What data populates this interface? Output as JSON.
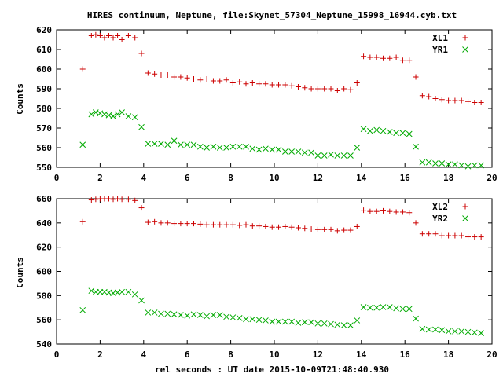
{
  "chart_data": [
    {
      "type": "scatter",
      "title": "HIRES continuum, Neptune, file:Skynet_57304_Neptune_15998_16944.cyb.txt",
      "xlabel": "",
      "ylabel": "Counts",
      "xlim": [
        0,
        20
      ],
      "ylim": [
        550,
        620
      ],
      "xticks": [
        "0",
        "2",
        "4",
        "6",
        "8",
        "10",
        "12",
        "14",
        "16",
        "18",
        "20"
      ],
      "yticks": [
        "550",
        "560",
        "570",
        "580",
        "590",
        "600",
        "610",
        "620"
      ],
      "legend_position": "top-right",
      "series": [
        {
          "name": "XL1",
          "marker": "plus",
          "color": "#cc0000",
          "points": [
            [
              1.2,
              600
            ],
            [
              1.6,
              617
            ],
            [
              1.8,
              617.5
            ],
            [
              2.0,
              617
            ],
            [
              2.2,
              616
            ],
            [
              2.4,
              617
            ],
            [
              2.6,
              616
            ],
            [
              2.8,
              617
            ],
            [
              3.0,
              615
            ],
            [
              3.3,
              617
            ],
            [
              3.6,
              616
            ],
            [
              3.9,
              608
            ],
            [
              4.2,
              598
            ],
            [
              4.5,
              597.5
            ],
            [
              4.8,
              597
            ],
            [
              5.1,
              597
            ],
            [
              5.4,
              596
            ],
            [
              5.7,
              596
            ],
            [
              6.0,
              595.5
            ],
            [
              6.3,
              595
            ],
            [
              6.6,
              594.5
            ],
            [
              6.9,
              595
            ],
            [
              7.2,
              594
            ],
            [
              7.5,
              594
            ],
            [
              7.8,
              594.5
            ],
            [
              8.1,
              593
            ],
            [
              8.4,
              593.5
            ],
            [
              8.7,
              592.5
            ],
            [
              9.0,
              593
            ],
            [
              9.3,
              592.5
            ],
            [
              9.6,
              592.5
            ],
            [
              9.9,
              592
            ],
            [
              10.2,
              592
            ],
            [
              10.5,
              592
            ],
            [
              10.8,
              591.5
            ],
            [
              11.1,
              591
            ],
            [
              11.4,
              590.5
            ],
            [
              11.7,
              590
            ],
            [
              12.0,
              590
            ],
            [
              12.3,
              590
            ],
            [
              12.6,
              590
            ],
            [
              12.9,
              589
            ],
            [
              13.2,
              590
            ],
            [
              13.5,
              589.5
            ],
            [
              13.8,
              593
            ],
            [
              14.1,
              606.5
            ],
            [
              14.4,
              606
            ],
            [
              14.7,
              606
            ],
            [
              15.0,
              605.5
            ],
            [
              15.3,
              605.5
            ],
            [
              15.6,
              606
            ],
            [
              15.9,
              604.5
            ],
            [
              16.2,
              604.5
            ],
            [
              16.5,
              596
            ],
            [
              16.8,
              586.5
            ],
            [
              17.1,
              586
            ],
            [
              17.4,
              585
            ],
            [
              17.7,
              584.5
            ],
            [
              18.0,
              584
            ],
            [
              18.3,
              584
            ],
            [
              18.6,
              584
            ],
            [
              18.9,
              583.5
            ],
            [
              19.2,
              583
            ],
            [
              19.5,
              583
            ]
          ]
        },
        {
          "name": "YR1",
          "marker": "cross",
          "color": "#00aa00",
          "points": [
            [
              1.2,
              561.5
            ],
            [
              1.6,
              577
            ],
            [
              1.8,
              578
            ],
            [
              2.0,
              577.5
            ],
            [
              2.2,
              577
            ],
            [
              2.4,
              576.5
            ],
            [
              2.6,
              576
            ],
            [
              2.8,
              577
            ],
            [
              3.0,
              578
            ],
            [
              3.3,
              576
            ],
            [
              3.6,
              575.5
            ],
            [
              3.9,
              570.5
            ],
            [
              4.2,
              562
            ],
            [
              4.5,
              562
            ],
            [
              4.8,
              562
            ],
            [
              5.1,
              561.5
            ],
            [
              5.4,
              563.5
            ],
            [
              5.7,
              561.5
            ],
            [
              6.0,
              561.5
            ],
            [
              6.3,
              561.5
            ],
            [
              6.6,
              560.5
            ],
            [
              6.9,
              560
            ],
            [
              7.2,
              560.5
            ],
            [
              7.5,
              560
            ],
            [
              7.8,
              560
            ],
            [
              8.1,
              560.5
            ],
            [
              8.4,
              560.5
            ],
            [
              8.7,
              560.5
            ],
            [
              9.0,
              559.5
            ],
            [
              9.3,
              559
            ],
            [
              9.6,
              559.5
            ],
            [
              9.9,
              559
            ],
            [
              10.2,
              559
            ],
            [
              10.5,
              558
            ],
            [
              10.8,
              558
            ],
            [
              11.1,
              558
            ],
            [
              11.4,
              557.5
            ],
            [
              11.7,
              557.5
            ],
            [
              12.0,
              556
            ],
            [
              12.3,
              556
            ],
            [
              12.6,
              556.5
            ],
            [
              12.9,
              556
            ],
            [
              13.2,
              556
            ],
            [
              13.5,
              556
            ],
            [
              13.8,
              560
            ],
            [
              14.1,
              569.5
            ],
            [
              14.4,
              568.5
            ],
            [
              14.7,
              569
            ],
            [
              15.0,
              568.5
            ],
            [
              15.3,
              568
            ],
            [
              15.6,
              567.5
            ],
            [
              15.9,
              567.5
            ],
            [
              16.2,
              567
            ],
            [
              16.5,
              560.5
            ],
            [
              16.8,
              552.5
            ],
            [
              17.1,
              552.5
            ],
            [
              17.4,
              552
            ],
            [
              17.7,
              552
            ],
            [
              18.0,
              551.5
            ],
            [
              18.3,
              551.5
            ],
            [
              18.6,
              551
            ],
            [
              18.9,
              550.5
            ],
            [
              19.2,
              551
            ],
            [
              19.5,
              551
            ]
          ]
        }
      ]
    },
    {
      "type": "scatter",
      "title": "",
      "xlabel": "rel seconds : UT date 2015-10-09T21:48:40.930",
      "ylabel": "Counts",
      "xlim": [
        0,
        20
      ],
      "ylim": [
        540,
        660
      ],
      "xticks": [
        "0",
        "2",
        "4",
        "6",
        "8",
        "10",
        "12",
        "14",
        "16",
        "18",
        "20"
      ],
      "yticks": [
        "540",
        "560",
        "580",
        "600",
        "620",
        "640",
        "660"
      ],
      "legend_position": "top-right",
      "series": [
        {
          "name": "XL2",
          "marker": "plus",
          "color": "#cc0000",
          "points": [
            [
              1.2,
              641
            ],
            [
              1.6,
              659
            ],
            [
              1.8,
              659.5
            ],
            [
              2.0,
              660
            ],
            [
              2.2,
              660
            ],
            [
              2.4,
              660
            ],
            [
              2.6,
              659.5
            ],
            [
              2.8,
              660
            ],
            [
              3.0,
              659.5
            ],
            [
              3.3,
              659.5
            ],
            [
              3.6,
              658.5
            ],
            [
              3.9,
              652.5
            ],
            [
              4.2,
              640.5
            ],
            [
              4.5,
              641
            ],
            [
              4.8,
              640
            ],
            [
              5.1,
              640
            ],
            [
              5.4,
              639.5
            ],
            [
              5.7,
              639.5
            ],
            [
              6.0,
              639.5
            ],
            [
              6.3,
              639.5
            ],
            [
              6.6,
              639
            ],
            [
              6.9,
              638.5
            ],
            [
              7.2,
              638.5
            ],
            [
              7.5,
              638.5
            ],
            [
              7.8,
              638.5
            ],
            [
              8.1,
              638.5
            ],
            [
              8.4,
              638
            ],
            [
              8.7,
              638.5
            ],
            [
              9.0,
              637.5
            ],
            [
              9.3,
              637.5
            ],
            [
              9.6,
              637
            ],
            [
              9.9,
              636.5
            ],
            [
              10.2,
              636.5
            ],
            [
              10.5,
              637
            ],
            [
              10.8,
              636.5
            ],
            [
              11.1,
              636
            ],
            [
              11.4,
              635.5
            ],
            [
              11.7,
              635
            ],
            [
              12.0,
              634.5
            ],
            [
              12.3,
              634.5
            ],
            [
              12.6,
              634.5
            ],
            [
              12.9,
              633.5
            ],
            [
              13.2,
              634
            ],
            [
              13.5,
              634
            ],
            [
              13.8,
              637
            ],
            [
              14.1,
              650.5
            ],
            [
              14.4,
              649.5
            ],
            [
              14.7,
              649.5
            ],
            [
              15.0,
              650
            ],
            [
              15.3,
              649.5
            ],
            [
              15.6,
              649
            ],
            [
              15.9,
              649
            ],
            [
              16.2,
              648.5
            ],
            [
              16.5,
              640
            ],
            [
              16.8,
              631
            ],
            [
              17.1,
              631
            ],
            [
              17.4,
              631
            ],
            [
              17.7,
              629.5
            ],
            [
              18.0,
              629.5
            ],
            [
              18.3,
              629.5
            ],
            [
              18.6,
              629.5
            ],
            [
              18.9,
              628.5
            ],
            [
              19.2,
              628.5
            ],
            [
              19.5,
              628.5
            ]
          ]
        },
        {
          "name": "YR2",
          "marker": "cross",
          "color": "#00aa00",
          "points": [
            [
              1.2,
              568
            ],
            [
              1.6,
              584
            ],
            [
              1.8,
              583
            ],
            [
              2.0,
              583
            ],
            [
              2.2,
              583
            ],
            [
              2.4,
              582.5
            ],
            [
              2.6,
              582
            ],
            [
              2.8,
              582.5
            ],
            [
              3.0,
              583
            ],
            [
              3.3,
              583
            ],
            [
              3.6,
              581
            ],
            [
              3.9,
              576
            ],
            [
              4.2,
              566
            ],
            [
              4.5,
              566
            ],
            [
              4.8,
              565
            ],
            [
              5.1,
              565
            ],
            [
              5.4,
              564.5
            ],
            [
              5.7,
              564
            ],
            [
              6.0,
              563.5
            ],
            [
              6.3,
              564.5
            ],
            [
              6.6,
              564
            ],
            [
              6.9,
              563
            ],
            [
              7.2,
              564
            ],
            [
              7.5,
              564
            ],
            [
              7.8,
              562.5
            ],
            [
              8.1,
              562
            ],
            [
              8.4,
              561.5
            ],
            [
              8.7,
              560.5
            ],
            [
              9.0,
              560.5
            ],
            [
              9.3,
              560
            ],
            [
              9.6,
              559.5
            ],
            [
              9.9,
              558.5
            ],
            [
              10.2,
              558.5
            ],
            [
              10.5,
              558.5
            ],
            [
              10.8,
              558.5
            ],
            [
              11.1,
              557.5
            ],
            [
              11.4,
              558
            ],
            [
              11.7,
              558
            ],
            [
              12.0,
              557
            ],
            [
              12.3,
              557
            ],
            [
              12.6,
              556.5
            ],
            [
              12.9,
              556
            ],
            [
              13.2,
              555.5
            ],
            [
              13.5,
              555.5
            ],
            [
              13.8,
              559.5
            ],
            [
              14.1,
              570.5
            ],
            [
              14.4,
              570
            ],
            [
              14.7,
              570
            ],
            [
              15.0,
              570.5
            ],
            [
              15.3,
              570.5
            ],
            [
              15.6,
              569.5
            ],
            [
              15.9,
              569
            ],
            [
              16.2,
              569
            ],
            [
              16.5,
              561
            ],
            [
              16.8,
              552.5
            ],
            [
              17.1,
              552
            ],
            [
              17.4,
              552
            ],
            [
              17.7,
              551.5
            ],
            [
              18.0,
              550.5
            ],
            [
              18.3,
              550.5
            ],
            [
              18.6,
              550.5
            ],
            [
              18.9,
              550
            ],
            [
              19.2,
              549.5
            ],
            [
              19.5,
              549
            ]
          ]
        }
      ]
    }
  ]
}
